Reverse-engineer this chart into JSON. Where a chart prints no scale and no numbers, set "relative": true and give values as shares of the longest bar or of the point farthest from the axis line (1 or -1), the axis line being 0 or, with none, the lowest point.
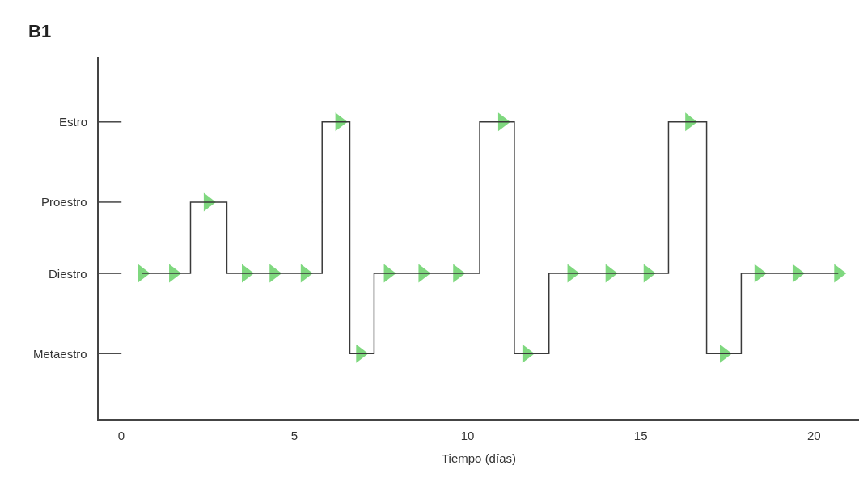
{
  "chart_data": {
    "type": "step",
    "title": "B1",
    "xlabel": "Tiempo (días)",
    "relative": true,
    "x": [
      0.6,
      1.5,
      2.5,
      3.6,
      4.4,
      5.3,
      6.3,
      6.9,
      7.7,
      8.7,
      9.7,
      11.0,
      11.7,
      13.0,
      14.1,
      15.2,
      16.4,
      17.4,
      18.4,
      19.5,
      20.7
    ],
    "series": [
      {
        "color": "#7fd87f",
        "values": [
          0.49,
          0.49,
          0.73,
          0.49,
          0.49,
          0.49,
          1,
          0.22,
          0.49,
          0.49,
          0.49,
          1,
          0.22,
          0.49,
          0.49,
          0.49,
          1,
          0.22,
          0.49,
          0.49,
          0.49
        ]
      }
    ],
    "annotations": [
      "Estro",
      "Proestro",
      "Diestro",
      "Metaestro"
    ],
    "xlim": [
      -0.65,
      21.3
    ],
    "xticks": [
      0,
      5,
      10,
      15,
      20
    ],
    "marker": "triangle",
    "grid": false,
    "legend": false
  }
}
